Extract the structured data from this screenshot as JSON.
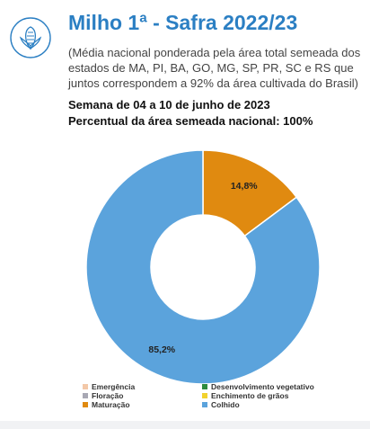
{
  "header": {
    "title": "Milho 1ª - Safra 2022/23",
    "subtitle": "(Média nacional ponderada pela área total semeada dos estados de MA, PI, BA, GO, MG, SP, PR, SC e RS que juntos correspondem a 92% da área cultivada do Brasil)",
    "icon": "corn-icon",
    "accent_color": "#2b7fc3"
  },
  "info": {
    "week": "Semana de 04 a 10 de junho de 2023",
    "area_percent": "Percentual da área semeada nacional: 100%"
  },
  "chart_data": {
    "type": "pie",
    "donut": true,
    "title": "",
    "categories": [
      "Maturação",
      "Colhido"
    ],
    "values": [
      14.8,
      85.2
    ],
    "colors": [
      "#e08a10",
      "#5ba3dc"
    ],
    "data_labels": [
      "14,8%",
      "85,2%"
    ],
    "legend": {
      "placement": "bottom",
      "entries": [
        {
          "label": "Emergência",
          "color": "#f3c8a8"
        },
        {
          "label": "Desenvolvimento vegetativo",
          "color": "#2e8b3e"
        },
        {
          "label": "Floração",
          "color": "#a8a8b4"
        },
        {
          "label": "Enchimento de grãos",
          "color": "#f2d22e"
        },
        {
          "label": "Maturação",
          "color": "#e08a10"
        },
        {
          "label": "Colhido",
          "color": "#5ba3dc"
        }
      ]
    }
  }
}
